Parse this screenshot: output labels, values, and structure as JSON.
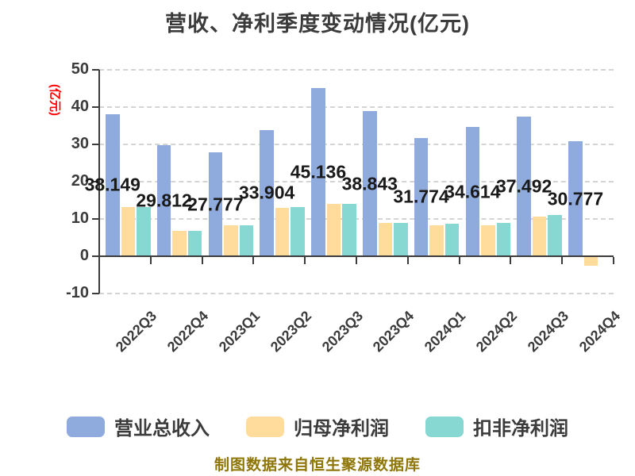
{
  "chart_data": {
    "type": "bar",
    "title": "营收、净利季度变动情况(亿元)",
    "ylabel": "(亿元)",
    "ylabel_color": "#ff0000",
    "categories": [
      "2022Q3",
      "2022Q4",
      "2023Q1",
      "2023Q2",
      "2023Q3",
      "2023Q4",
      "2024Q1",
      "2024Q2",
      "2024Q3",
      "2024Q4"
    ],
    "series": [
      {
        "name": "营业总收入",
        "color": "#8faadc",
        "values": [
          38.149,
          29.812,
          27.777,
          33.904,
          45.136,
          38.843,
          31.774,
          34.614,
          37.492,
          30.777
        ],
        "value_labels": [
          "38.149",
          "29.812",
          "27.777",
          "33.904",
          "45.136",
          "38.843",
          "31.774",
          "34.614",
          "37.492",
          "30.777"
        ]
      },
      {
        "name": "归母净利润",
        "color": "#ffdc9c",
        "values": [
          13.2,
          6.8,
          8.3,
          13.0,
          14.0,
          8.9,
          8.3,
          8.3,
          10.6,
          -2.5
        ]
      },
      {
        "name": "扣非净利润",
        "color": "#87d8d3",
        "values": [
          13.1,
          6.8,
          8.3,
          13.2,
          14.1,
          8.9,
          8.7,
          8.9,
          11.1,
          0
        ]
      }
    ],
    "ylim": [
      -10,
      50
    ],
    "yticks": [
      50,
      40,
      30,
      20,
      10,
      0,
      -10
    ],
    "grid": "horizontal-dashed",
    "legend_position": "bottom",
    "source_note": "制图数据来自恒生聚源数据库",
    "source_note_color": "#8f7608"
  }
}
